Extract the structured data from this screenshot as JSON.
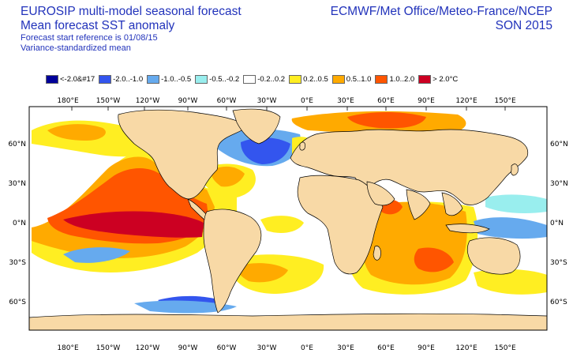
{
  "header": {
    "title_line1": "EUROSIP multi-model seasonal forecast",
    "title_line2": "Mean forecast SST anomaly",
    "subtitle_line1": "Forecast start reference is 01/08/15",
    "subtitle_line2": "Variance-standardized mean",
    "institutions": "ECMWF/Met Office/Meteo-France/NCEP",
    "season": "SON 2015"
  },
  "legend": [
    {
      "label": "<-2.0&#17",
      "color": "#000099"
    },
    {
      "label": "-2.0..-1.0",
      "color": "#3355ee"
    },
    {
      "label": "-1.0..-0.5",
      "color": "#66aaee"
    },
    {
      "label": "-0.5..-0.2",
      "color": "#99eeee"
    },
    {
      "label": "-0.2..0.2",
      "color": "#ffffff"
    },
    {
      "label": "0.2..0.5",
      "color": "#ffee22"
    },
    {
      "label": "0.5..1.0",
      "color": "#ffaa00"
    },
    {
      "label": "1.0..2.0",
      "color": "#ff5500"
    },
    {
      "label": "> 2.0°C",
      "color": "#cc0022"
    }
  ],
  "axes": {
    "lon_labels": [
      "180°E",
      "150°W",
      "120°W",
      "90°W",
      "60°W",
      "30°W",
      "0°E",
      "30°E",
      "60°E",
      "90°E",
      "120°E",
      "150°E"
    ],
    "lat_labels_left": [
      "60°N",
      "30°N",
      "0°N",
      "30°S",
      "60°S"
    ],
    "lat_labels_right": [
      "60°N",
      "30°N",
      "0°N",
      "30°S",
      "60°S"
    ]
  },
  "colors": {
    "land": "#f8d9a6",
    "ocean_neutral": "#ffffff",
    "coast": "#000000",
    "header_text": "#2233bb"
  }
}
